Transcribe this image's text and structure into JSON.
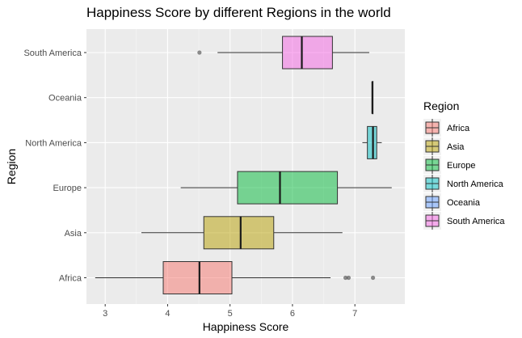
{
  "chart_data": {
    "type": "boxplot",
    "orientation": "horizontal",
    "title": "Happiness Score by different Regions in the world",
    "xlabel": "Happiness Score",
    "ylabel": "Region",
    "xlim": [
      2.7,
      7.8
    ],
    "xticks": [
      3,
      4,
      5,
      6,
      7
    ],
    "grid": true,
    "legend": {
      "title": "Region",
      "position": "right"
    },
    "categories": [
      "Africa",
      "Asia",
      "Europe",
      "North America",
      "Oceania",
      "South America"
    ],
    "series": [
      {
        "name": "Africa",
        "color": "#F8766D",
        "whisker_low": 2.84,
        "q1": 3.93,
        "median": 4.51,
        "q3": 5.03,
        "whisker_high": 6.61,
        "outliers": [
          6.85,
          6.9,
          7.29
        ]
      },
      {
        "name": "Asia",
        "color": "#B79F00",
        "whisker_low": 3.58,
        "q1": 4.58,
        "median": 5.17,
        "q3": 5.7,
        "whisker_high": 6.8,
        "outliers": []
      },
      {
        "name": "Europe",
        "color": "#00BA38",
        "whisker_low": 4.21,
        "q1": 5.12,
        "median": 5.8,
        "q3": 6.72,
        "whisker_high": 7.59,
        "outliers": []
      },
      {
        "name": "North America",
        "color": "#00BFC4",
        "whisker_low": 7.12,
        "q1": 7.2,
        "median": 7.29,
        "q3": 7.35,
        "whisker_high": 7.43,
        "outliers": []
      },
      {
        "name": "Oceania",
        "color": "#619CFF",
        "whisker_low": 7.28,
        "q1": 7.28,
        "median": 7.28,
        "q3": 7.29,
        "whisker_high": 7.29,
        "outliers": []
      },
      {
        "name": "South America",
        "color": "#F564E3",
        "whisker_low": 4.8,
        "q1": 5.84,
        "median": 6.15,
        "q3": 6.64,
        "whisker_high": 7.23,
        "outliers": [
          4.51
        ]
      }
    ]
  }
}
